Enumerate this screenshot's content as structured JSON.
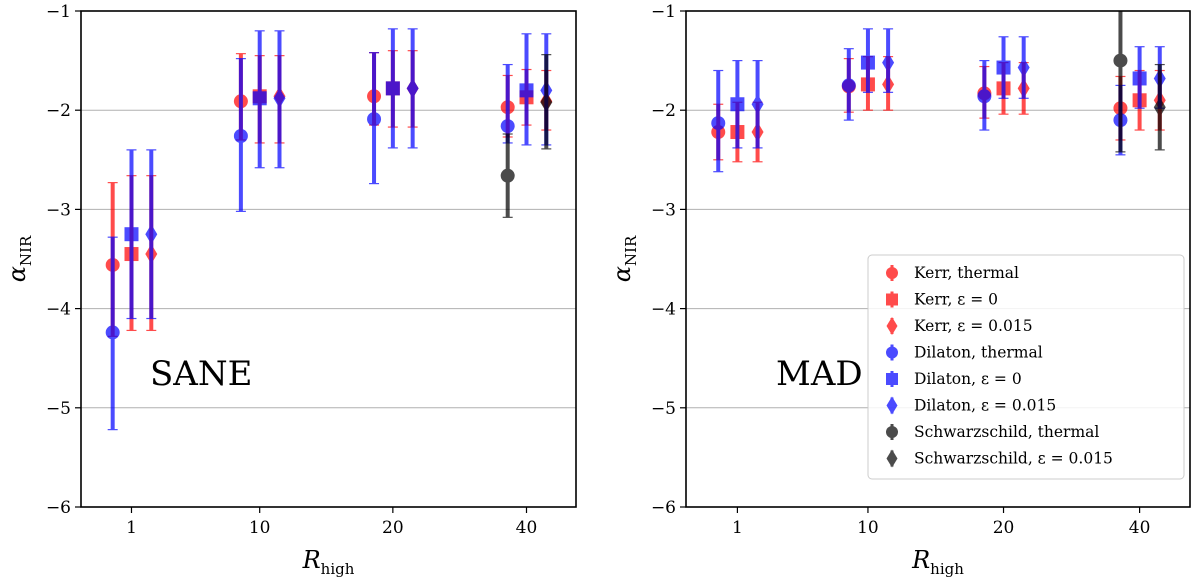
{
  "chart_data": [
    {
      "type": "scatter",
      "panel": "SANE",
      "title": "",
      "xlabel": "R",
      "xlabel_sub": "high",
      "ylabel": "α",
      "ylabel_sub": "NIR",
      "ylim": [
        -6,
        -1
      ],
      "yticks": [
        -6,
        -5,
        -4,
        -3,
        -2,
        -1
      ],
      "ytick_labels": [
        "−6",
        "−5",
        "−4",
        "−3",
        "−2",
        "−1"
      ],
      "xticks": [
        1,
        10,
        20,
        40
      ],
      "xtick_labels": [
        "1",
        "10",
        "20",
        "40"
      ],
      "grid": "horizontal",
      "annotation": "SANE",
      "series": [
        {
          "name": "Kerr, thermal",
          "color": "#ff0000",
          "marker": "circle",
          "alpha": 0.7,
          "points": [
            {
              "x": 1,
              "y": -3.56,
              "lo": -4.28,
              "hi": -2.73
            },
            {
              "x": 10,
              "y": -1.91,
              "lo": -2.3,
              "hi": -1.43
            },
            {
              "x": 20,
              "y": -1.86,
              "lo": -2.15,
              "hi": -1.42
            },
            {
              "x": 40,
              "y": -1.97,
              "lo": -2.27,
              "hi": -1.65
            }
          ]
        },
        {
          "name": "Kerr, ε = 0",
          "color": "#ff0000",
          "marker": "square",
          "alpha": 0.7,
          "points": [
            {
              "x": 1,
              "y": -3.45,
              "lo": -4.22,
              "hi": -2.66
            },
            {
              "x": 10,
              "y": -1.86,
              "lo": -2.33,
              "hi": -1.45
            },
            {
              "x": 20,
              "y": -1.78,
              "lo": -2.17,
              "hi": -1.4
            },
            {
              "x": 40,
              "y": -1.87,
              "lo": -2.15,
              "hi": -1.59
            }
          ]
        },
        {
          "name": "Kerr, ε = 0.015",
          "color": "#ff0000",
          "marker": "diamond",
          "alpha": 0.7,
          "points": [
            {
              "x": 1,
              "y": -3.45,
              "lo": -4.22,
              "hi": -2.66
            },
            {
              "x": 10,
              "y": -1.86,
              "lo": -2.33,
              "hi": -1.45
            },
            {
              "x": 20,
              "y": -1.78,
              "lo": -2.17,
              "hi": -1.4
            },
            {
              "x": 40,
              "y": -1.91,
              "lo": -2.2,
              "hi": -1.6
            }
          ]
        },
        {
          "name": "Dilaton, thermal",
          "color": "#0000ff",
          "marker": "circle",
          "alpha": 0.7,
          "points": [
            {
              "x": 1,
              "y": -4.24,
              "lo": -5.22,
              "hi": -3.28
            },
            {
              "x": 10,
              "y": -2.26,
              "lo": -3.02,
              "hi": -1.48
            },
            {
              "x": 20,
              "y": -2.09,
              "lo": -2.74,
              "hi": -1.42
            },
            {
              "x": 40,
              "y": -2.16,
              "lo": -2.33,
              "hi": -1.54
            }
          ]
        },
        {
          "name": "Dilaton, ε = 0",
          "color": "#0000ff",
          "marker": "square",
          "alpha": 0.7,
          "points": [
            {
              "x": 1,
              "y": -3.25,
              "lo": -4.1,
              "hi": -2.4
            },
            {
              "x": 10,
              "y": -1.88,
              "lo": -2.58,
              "hi": -1.2
            },
            {
              "x": 20,
              "y": -1.78,
              "lo": -2.38,
              "hi": -1.18
            },
            {
              "x": 40,
              "y": -1.8,
              "lo": -2.35,
              "hi": -1.23
            }
          ]
        },
        {
          "name": "Dilaton, ε = 0.015",
          "color": "#0000ff",
          "marker": "diamond",
          "alpha": 0.7,
          "points": [
            {
              "x": 1,
              "y": -3.25,
              "lo": -4.1,
              "hi": -2.4
            },
            {
              "x": 10,
              "y": -1.88,
              "lo": -2.58,
              "hi": -1.2
            },
            {
              "x": 20,
              "y": -1.78,
              "lo": -2.38,
              "hi": -1.18
            },
            {
              "x": 40,
              "y": -1.8,
              "lo": -2.35,
              "hi": -1.23
            }
          ]
        },
        {
          "name": "Schwarzschild, thermal",
          "color": "#000000",
          "marker": "circle",
          "alpha": 0.7,
          "points": [
            {
              "x": 40,
              "y": -2.66,
              "lo": -3.08,
              "hi": -2.24
            }
          ]
        },
        {
          "name": "Schwarzschild, ε = 0.015",
          "color": "#000000",
          "marker": "diamond",
          "alpha": 0.7,
          "points": [
            {
              "x": 40,
              "y": -1.92,
              "lo": -2.39,
              "hi": -1.44
            }
          ]
        }
      ]
    },
    {
      "type": "scatter",
      "panel": "MAD",
      "title": "",
      "xlabel": "R",
      "xlabel_sub": "high",
      "ylabel": "α",
      "ylabel_sub": "NIR",
      "ylim": [
        -6,
        -1
      ],
      "yticks": [
        -6,
        -5,
        -4,
        -3,
        -2,
        -1
      ],
      "ytick_labels": [
        "−6",
        "−5",
        "−4",
        "−3",
        "−2",
        "−1"
      ],
      "xticks": [
        1,
        10,
        20,
        40
      ],
      "xtick_labels": [
        "1",
        "10",
        "20",
        "40"
      ],
      "grid": "horizontal",
      "annotation": "MAD",
      "legend_position": "lower-right",
      "series": [
        {
          "name": "Kerr, thermal",
          "color": "#ff0000",
          "marker": "circle",
          "alpha": 0.7,
          "points": [
            {
              "x": 1,
              "y": -2.22,
              "lo": -2.5,
              "hi": -1.94
            },
            {
              "x": 10,
              "y": -1.76,
              "lo": -2.02,
              "hi": -1.48
            },
            {
              "x": 20,
              "y": -1.83,
              "lo": -2.08,
              "hi": -1.56
            },
            {
              "x": 40,
              "y": -1.98,
              "lo": -2.3,
              "hi": -1.66
            }
          ]
        },
        {
          "name": "Kerr, ε = 0",
          "color": "#ff0000",
          "marker": "square",
          "alpha": 0.7,
          "points": [
            {
              "x": 1,
              "y": -2.22,
              "lo": -2.52,
              "hi": -1.92
            },
            {
              "x": 10,
              "y": -1.74,
              "lo": -2.0,
              "hi": -1.46
            },
            {
              "x": 20,
              "y": -1.78,
              "lo": -2.04,
              "hi": -1.52
            },
            {
              "x": 40,
              "y": -1.9,
              "lo": -2.2,
              "hi": -1.6
            }
          ]
        },
        {
          "name": "Kerr, ε = 0.015",
          "color": "#ff0000",
          "marker": "diamond",
          "alpha": 0.7,
          "points": [
            {
              "x": 1,
              "y": -2.22,
              "lo": -2.52,
              "hi": -1.92
            },
            {
              "x": 10,
              "y": -1.74,
              "lo": -2.0,
              "hi": -1.46
            },
            {
              "x": 20,
              "y": -1.78,
              "lo": -2.04,
              "hi": -1.52
            },
            {
              "x": 40,
              "y": -1.9,
              "lo": -2.2,
              "hi": -1.6
            }
          ]
        },
        {
          "name": "Dilaton, thermal",
          "color": "#0000ff",
          "marker": "circle",
          "alpha": 0.7,
          "points": [
            {
              "x": 1,
              "y": -2.13,
              "lo": -2.62,
              "hi": -1.6
            },
            {
              "x": 10,
              "y": -1.75,
              "lo": -2.1,
              "hi": -1.38
            },
            {
              "x": 20,
              "y": -1.86,
              "lo": -2.2,
              "hi": -1.5
            },
            {
              "x": 40,
              "y": -2.1,
              "lo": -2.45,
              "hi": -1.75
            }
          ]
        },
        {
          "name": "Dilaton, ε = 0",
          "color": "#0000ff",
          "marker": "square",
          "alpha": 0.7,
          "points": [
            {
              "x": 1,
              "y": -1.94,
              "lo": -2.38,
              "hi": -1.5
            },
            {
              "x": 10,
              "y": -1.52,
              "lo": -1.82,
              "hi": -1.18
            },
            {
              "x": 20,
              "y": -1.57,
              "lo": -1.88,
              "hi": -1.26
            },
            {
              "x": 40,
              "y": -1.68,
              "lo": -1.98,
              "hi": -1.36
            }
          ]
        },
        {
          "name": "Dilaton, ε = 0.015",
          "color": "#0000ff",
          "marker": "diamond",
          "alpha": 0.7,
          "points": [
            {
              "x": 1,
              "y": -1.94,
              "lo": -2.38,
              "hi": -1.5
            },
            {
              "x": 10,
              "y": -1.52,
              "lo": -1.82,
              "hi": -1.18
            },
            {
              "x": 20,
              "y": -1.57,
              "lo": -1.88,
              "hi": -1.26
            },
            {
              "x": 40,
              "y": -1.68,
              "lo": -1.98,
              "hi": -1.36
            }
          ]
        },
        {
          "name": "Schwarzschild, thermal",
          "color": "#000000",
          "marker": "circle",
          "alpha": 0.7,
          "points": [
            {
              "x": 40,
              "y": -1.5,
              "lo": -2.42,
              "hi": -0.98
            }
          ]
        },
        {
          "name": "Schwarzschild, ε = 0.015",
          "color": "#000000",
          "marker": "diamond",
          "alpha": 0.7,
          "points": [
            {
              "x": 40,
              "y": -1.97,
              "lo": -2.4,
              "hi": -1.54
            }
          ]
        }
      ]
    }
  ]
}
